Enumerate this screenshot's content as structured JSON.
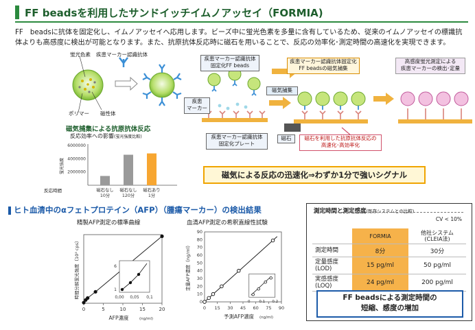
{
  "title": "FF beadsを利用したサンドイッチイムノアッセイ（FORMIA)",
  "intro": "FF　beadsに抗体を固定化し、イムノアッセイへ応用します。ビーズ中に蛍光色素を多量に含有しているため、従来のイムノアッセイの標識抗体よりも高感度に検出が可能となります。また、抗原抗体反応時に磁石を用いることで、反応の効率化･測定時間の高速化を実現できます。",
  "bead_diagram": {
    "fluor_label": "蛍光色素",
    "antibody_label": "疾患マーカー認識抗体",
    "polymer_label": "ポリマー",
    "magnetic_label": "磁性体"
  },
  "flow": {
    "fixed_beads_box": "疾患マーカー認識抗体\n固定化FF beads",
    "magnet_collect": "磁気捕集",
    "disease_marker": "疾患\nマーカー",
    "plate_box": "疾患マーカー認識抗体\n固定化プレート",
    "magnetic_collection_box": "疾患マーカー認識抗体固定化\nFF beadsの磁気捕集",
    "detection_box": "高感度蛍光測定による\n疾患マーカーの検出･定量",
    "magnet_label": "磁石",
    "magnet_effect_box": "磁石を利用した抗原抗体反応の\n高速化･高効率化"
  },
  "signal_banner": "磁気による反応の迅速化⇒わずか1分で強いシグナル",
  "bar_chart": {
    "section_title": "磁気捕集による抗原抗体反応",
    "subtitle": "反応効率への影響",
    "subtitle_note": "(蛍光強度比較)",
    "ylabel": "蛍光強度",
    "y_ticks": [
      "6000000",
      "4000000",
      "2000000"
    ],
    "row_label": "反応時間",
    "cat_line1": [
      "磁石なし",
      "磁石なし",
      "磁石あり"
    ],
    "cat_line2": [
      "10分",
      "120分",
      "1分"
    ]
  },
  "result_title": "ヒト血清中のαフェトプロテイン（AFP）（腫瘍マーカー）の検出結果",
  "std_curve": {
    "title": "精製AFP測定の標準曲線",
    "xlabel": "AFP濃度",
    "xunit": "(ng/ml)",
    "ylabel": "時間分解蛍光強度（10³ cps）",
    "x_ticks": [
      "0",
      "5",
      "10",
      "15",
      "20"
    ],
    "inset_x_ticks": [
      "0,00",
      "0,05",
      "0,1"
    ],
    "inset_y_ticks": [
      "6",
      "1"
    ]
  },
  "dilution": {
    "title": "血清AFP測定の希釈直線性試験",
    "xlabel": "予測AFP濃度",
    "xunit": "(ng/ml)",
    "ylabel": "定量AFP濃度（ng/ml）",
    "x_ticks": [
      "0",
      "15",
      "30",
      "45",
      "60",
      "75",
      "90"
    ],
    "y_ticks": [
      "0",
      "10",
      "20",
      "30",
      "40",
      "50",
      "60",
      "70",
      "80",
      "90"
    ],
    "inset_ticks": [
      "0",
      "0.1",
      "0.2"
    ]
  },
  "summary": {
    "title": "測定時間と測定感度",
    "title_note": "(既存システムとの比較)",
    "cv": "CV < 10%",
    "col_formia": "FORMIA",
    "col_other_1": "他社システム",
    "col_other_2": "(CLEIA法)",
    "rows": [
      {
        "h1": "測定時間",
        "h2": "",
        "formia": "8分",
        "other": "30分"
      },
      {
        "h1": "定量感度",
        "h2": "(LOD)",
        "formia": "15 pg/ml",
        "other": "50 pg/ml"
      },
      {
        "h1": "実感感度",
        "h2": "(LOQ)",
        "formia": "24 pg/ml",
        "other": "200 pg/ml"
      }
    ],
    "footer_1": "FF beadsによる測定時間の",
    "footer_2": "短縮、感度の増加"
  },
  "chart_data": [
    {
      "type": "bar",
      "title": "反応効率への影響",
      "ylabel": "蛍光強度",
      "categories": [
        "磁石なし 10分",
        "磁石なし 120分",
        "磁石あり 1分"
      ],
      "values": [
        1400000,
        4600000,
        4800000
      ],
      "colors": [
        "#9a9a9a",
        "#9a9a9a",
        "#f7a631"
      ],
      "ylim": [
        0,
        6000000
      ]
    },
    {
      "type": "line",
      "title": "精製AFP測定の標準曲線",
      "xlabel": "AFP濃度",
      "ylabel": "時間分解蛍光強度（10³ cps）",
      "x": [
        0,
        0.5,
        1,
        3,
        20
      ],
      "y": [
        20,
        100,
        160,
        350,
        2050
      ],
      "xlim": [
        0,
        20
      ]
    },
    {
      "type": "scatter",
      "title": "血清AFP測定の希釈直線性試験",
      "xlabel": "予測AFP濃度",
      "ylabel": "定量AFP濃度（ng/ml）",
      "x": [
        0,
        5,
        10,
        20,
        40,
        80
      ],
      "y": [
        0,
        5,
        10,
        20,
        40,
        79
      ],
      "xlim": [
        0,
        90
      ],
      "ylim": [
        0,
        90
      ]
    }
  ]
}
